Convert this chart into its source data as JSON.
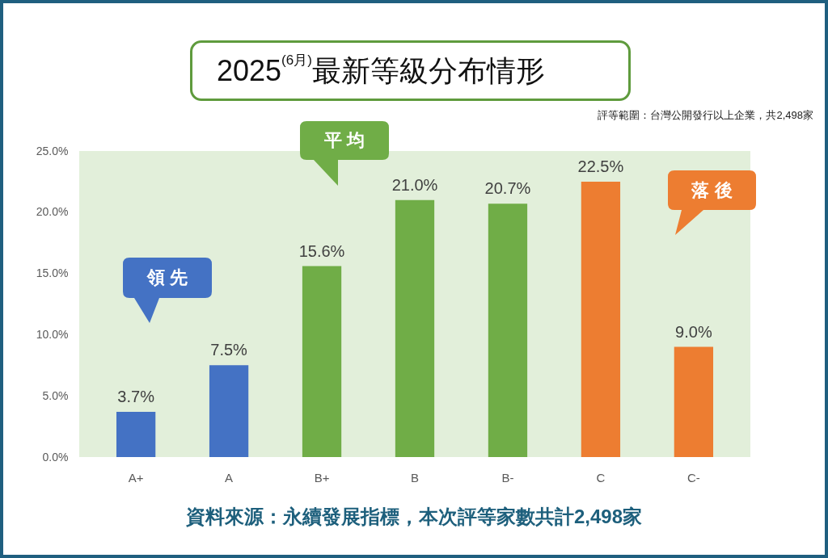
{
  "chart_data": {
    "type": "bar",
    "title": "2025$^{(6月)}$最新等級分布情形",
    "subtitle": "評等範圍：台灣公開發行以上企業，共2,498家",
    "categories": [
      "A+",
      "A",
      "B+",
      "B",
      "B-",
      "C",
      "C-"
    ],
    "values": [
      3.7,
      7.5,
      15.6,
      21.0,
      20.7,
      22.5,
      9.0
    ],
    "colors": [
      "#4472c4",
      "#4472c4",
      "#70ad47",
      "#70ad47",
      "#70ad47",
      "#ed7d31",
      "#ed7d31"
    ],
    "value_labels": [
      "3.7%",
      "7.5%",
      "15.6%",
      "21.0%",
      "20.7%",
      "22.5%",
      "9.0%"
    ],
    "ylim": [
      0,
      25
    ],
    "yticks": [
      {
        "value": 0,
        "label": "0.0%"
      },
      {
        "value": 5,
        "label": "5.0%"
      },
      {
        "value": 10,
        "label": "10.0%"
      },
      {
        "value": 15,
        "label": "15.0%"
      },
      {
        "value": 20,
        "label": "20.0%"
      },
      {
        "value": 25,
        "label": "25.0%"
      }
    ],
    "annotations": [
      "領 先",
      "平 均",
      "落 後",
      "資料來源：永續發展指標，本次評等家數共計2,498家"
    ]
  }
}
